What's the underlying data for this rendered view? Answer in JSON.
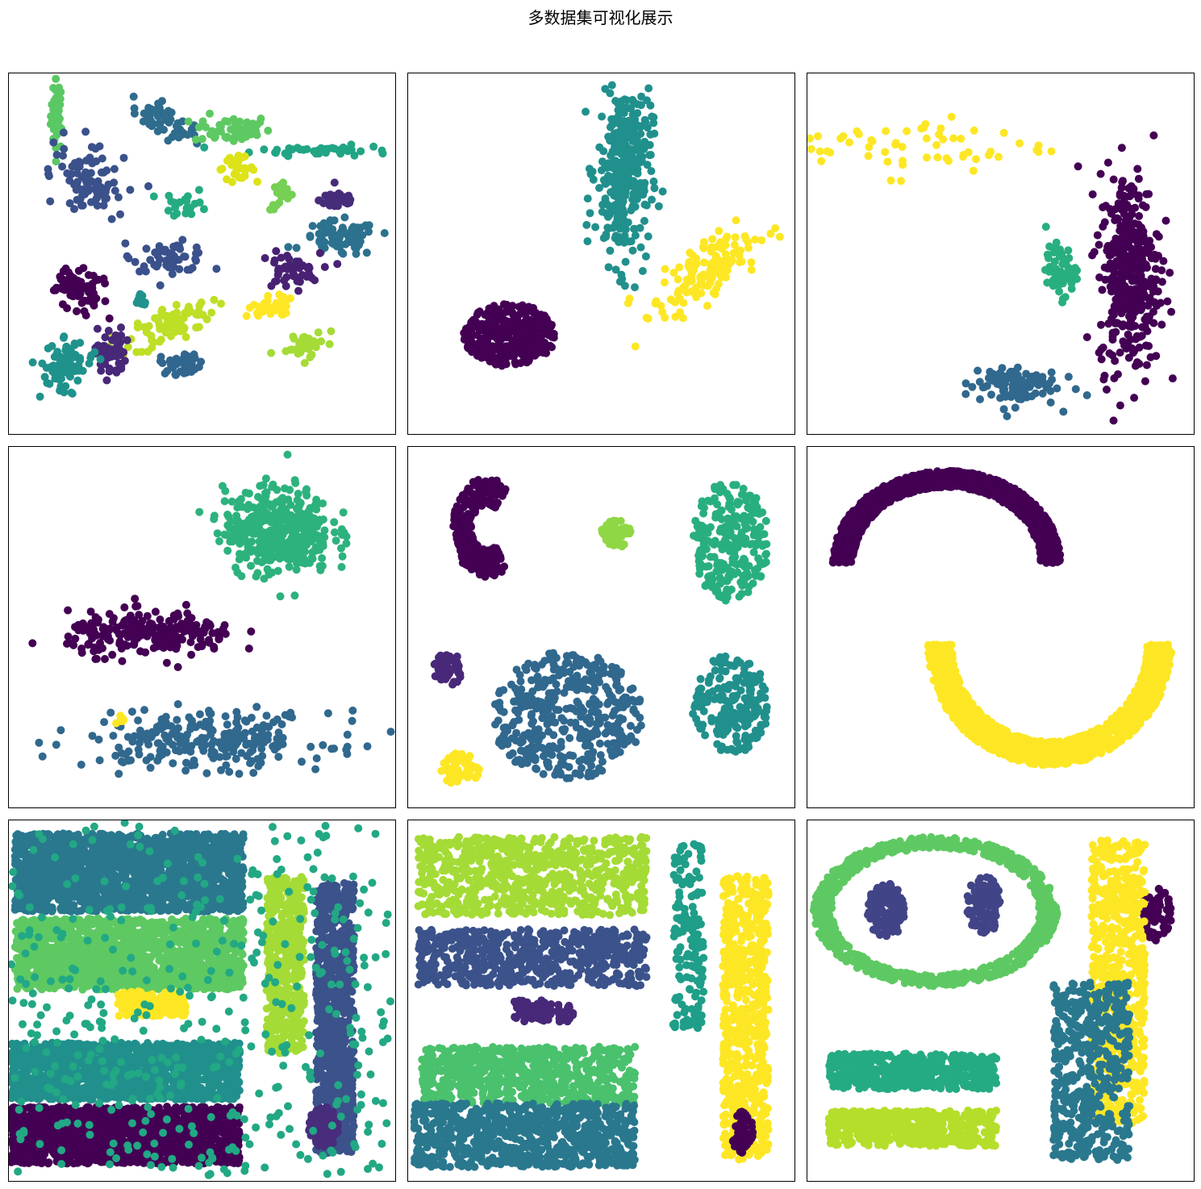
{
  "figure": {
    "title": "多数据集可视化展示"
  },
  "chart_data": [
    {
      "type": "scatter",
      "grid": false,
      "legend": null,
      "axes_visible": false,
      "xlim": [
        0,
        100
      ],
      "ylim": [
        0,
        100
      ],
      "clusters": [
        {
          "color": "#5ac864",
          "cx": 12,
          "cy": 89,
          "sx": 0.8,
          "sy": 5,
          "n": 40
        },
        {
          "color": "#2f6c8e",
          "cx": 40,
          "cy": 87,
          "sx": 5,
          "sy": 2,
          "n": 55,
          "rot": -0.5
        },
        {
          "color": "#5ec962",
          "cx": 58,
          "cy": 85,
          "sx": 5,
          "sy": 2,
          "n": 55
        },
        {
          "color": "#21a585",
          "cx": 82,
          "cy": 79,
          "sx": 9,
          "sy": 0.7,
          "n": 45
        },
        {
          "color": "#3b518b",
          "cx": 20,
          "cy": 71,
          "sx": 4,
          "sy": 6,
          "n": 90,
          "rot": 0.7
        },
        {
          "color": "#dde318",
          "cx": 59,
          "cy": 74,
          "sx": 2.5,
          "sy": 1.5,
          "n": 30
        },
        {
          "color": "#75d054",
          "cx": 71,
          "cy": 66,
          "sx": 1.5,
          "sy": 2,
          "n": 20
        },
        {
          "color": "#472c7a",
          "cx": 86,
          "cy": 65,
          "sx": 2.5,
          "sy": 1.5,
          "n": 40
        },
        {
          "color": "#2c718e",
          "cx": 86,
          "cy": 54,
          "sx": 5,
          "sy": 2.5,
          "n": 80
        },
        {
          "color": "#25ab82",
          "cx": 46,
          "cy": 64,
          "sx": 3,
          "sy": 2,
          "n": 22
        },
        {
          "color": "#3b518b",
          "cx": 42,
          "cy": 49,
          "sx": 5,
          "sy": 2,
          "n": 55
        },
        {
          "color": "#482173",
          "cx": 73,
          "cy": 45,
          "sx": 4,
          "sy": 2.5,
          "n": 50
        },
        {
          "color": "#440154",
          "cx": 18,
          "cy": 40,
          "sx": 3,
          "sy": 4,
          "n": 80,
          "rot": 0.8
        },
        {
          "color": "#bddf26",
          "cx": 42,
          "cy": 30,
          "sx": 6,
          "sy": 2.5,
          "n": 80,
          "rot": 0.4
        },
        {
          "color": "#20928c",
          "cx": 34,
          "cy": 37,
          "sx": 1,
          "sy": 1.5,
          "n": 12
        },
        {
          "color": "#fde725",
          "cx": 67,
          "cy": 34,
          "sx": 3,
          "sy": 1.5,
          "n": 35,
          "rot": 0.4
        },
        {
          "color": "#482878",
          "cx": 26,
          "cy": 22,
          "sx": 2,
          "sy": 3.5,
          "n": 50
        },
        {
          "color": "#20928c",
          "cx": 14,
          "cy": 18,
          "sx": 3,
          "sy": 4,
          "n": 90,
          "rot": -0.8
        },
        {
          "color": "#31668e",
          "cx": 45,
          "cy": 19,
          "sx": 3,
          "sy": 1.5,
          "n": 40
        },
        {
          "color": "#a5db36",
          "cx": 77,
          "cy": 24,
          "sx": 3,
          "sy": 1.5,
          "n": 40,
          "rot": 0.3
        }
      ]
    },
    {
      "type": "scatter",
      "grid": false,
      "legend": null,
      "axes_visible": false,
      "xlim": [
        0,
        100
      ],
      "ylim": [
        0,
        100
      ],
      "clusters": [
        {
          "color": "#440154",
          "cx": 26,
          "cy": 27,
          "sx": 12,
          "sy": 9,
          "n": 320,
          "shape": "disc"
        },
        {
          "color": "#21908d",
          "cx": 56,
          "cy": 73,
          "sx": 3.5,
          "sy": 13,
          "n": 330,
          "rot": -0.03
        },
        {
          "color": "#fde725",
          "cx": 77,
          "cy": 44,
          "sx": 8,
          "sy": 3.5,
          "n": 140,
          "rot": 0.65
        }
      ]
    },
    {
      "type": "scatter",
      "grid": false,
      "legend": null,
      "axes_visible": false,
      "xlim": [
        0,
        100
      ],
      "ylim": [
        0,
        100
      ],
      "clusters": [
        {
          "color": "#fde725",
          "cx": 30,
          "cy": 80,
          "sx": 17,
          "sy": 4,
          "n": 60
        },
        {
          "color": "#440154",
          "cx": 84,
          "cy": 45,
          "sx": 4,
          "sy": 14,
          "n": 380
        },
        {
          "color": "#29af7f",
          "cx": 66,
          "cy": 45,
          "sx": 2,
          "sy": 3.5,
          "n": 60
        },
        {
          "color": "#31688e",
          "cx": 53,
          "cy": 13,
          "sx": 6,
          "sy": 3,
          "n": 100
        }
      ]
    },
    {
      "type": "scatter",
      "grid": false,
      "legend": null,
      "axes_visible": false,
      "xlim": [
        0,
        100
      ],
      "ylim": [
        0,
        100
      ],
      "clusters": [
        {
          "color": "#2db27d",
          "cx": 70,
          "cy": 77,
          "sx": 7,
          "sy": 6,
          "n": 420
        },
        {
          "color": "#440154",
          "cx": 37,
          "cy": 48,
          "sx": 11,
          "sy": 3,
          "n": 230
        },
        {
          "color": "#31688e",
          "cx": 52,
          "cy": 18,
          "sx": 16,
          "sy": 4,
          "n": 260
        },
        {
          "color": "#fde725",
          "cx": 29,
          "cy": 24,
          "sx": 0.6,
          "sy": 0.6,
          "n": 10
        }
      ]
    },
    {
      "type": "scatter",
      "grid": false,
      "legend": null,
      "axes_visible": false,
      "xlim": [
        0,
        100
      ],
      "ylim": [
        0,
        100
      ],
      "clusters": [
        {
          "color": "#440154",
          "cx": 20,
          "cy": 78,
          "sx": 9,
          "sy": 14,
          "n": 260,
          "shape": "crescent"
        },
        {
          "color": "#8fd744",
          "cx": 54,
          "cy": 76,
          "sx": 4,
          "sy": 4,
          "n": 60,
          "shape": "disc"
        },
        {
          "color": "#29af7f",
          "cx": 84,
          "cy": 74,
          "sx": 10,
          "sy": 17,
          "n": 240,
          "shape": "disc"
        },
        {
          "color": "#21908d",
          "cx": 84,
          "cy": 28,
          "sx": 10,
          "sy": 14,
          "n": 200,
          "shape": "disc"
        },
        {
          "color": "#482878",
          "cx": 10,
          "cy": 38,
          "sx": 4,
          "sy": 5,
          "n": 45,
          "shape": "disc"
        },
        {
          "color": "#31688e",
          "cx": 41,
          "cy": 25,
          "sx": 20,
          "sy": 18,
          "n": 420,
          "shape": "disc"
        },
        {
          "color": "#fde725",
          "cx": 13,
          "cy": 10,
          "sx": 5,
          "sy": 5,
          "n": 50,
          "shape": "disc"
        }
      ]
    },
    {
      "type": "scatter",
      "grid": false,
      "legend": null,
      "axes_visible": false,
      "xlim": [
        0,
        100
      ],
      "ylim": [
        0,
        100
      ],
      "clusters": [
        {
          "color": "#440154",
          "cx": 36,
          "cy": 68,
          "sx": 30,
          "sy": 26,
          "n": 1400,
          "shape": "arc_top"
        },
        {
          "color": "#fde725",
          "cx": 63,
          "cy": 45,
          "sx": 32,
          "sy": 34,
          "n": 1500,
          "shape": "arc_bottom"
        }
      ]
    },
    {
      "type": "scatter",
      "grid": false,
      "legend": null,
      "axes_visible": false,
      "xlim": [
        0,
        100
      ],
      "ylim": [
        0,
        100
      ],
      "clusters": [
        {
          "color": "#2a788e",
          "cx": 31,
          "cy": 86,
          "sx": 30,
          "sy": 11,
          "n": 1800,
          "shape": "rect"
        },
        {
          "color": "#5ec962",
          "cx": 31,
          "cy": 63,
          "sx": 30,
          "sy": 10,
          "n": 1600,
          "shape": "rect"
        },
        {
          "color": "#fde725",
          "cx": 37,
          "cy": 49,
          "sx": 9,
          "sy": 3.5,
          "n": 200,
          "shape": "rect"
        },
        {
          "color": "#21908d",
          "cx": 30,
          "cy": 30,
          "sx": 30,
          "sy": 8,
          "n": 1500,
          "shape": "rect"
        },
        {
          "color": "#440154",
          "cx": 30,
          "cy": 12,
          "sx": 30,
          "sy": 8,
          "n": 1800,
          "shape": "rect"
        },
        {
          "color": "#a5db36",
          "cx": 72,
          "cy": 60,
          "sx": 5,
          "sy": 25,
          "n": 500,
          "shape": "rect"
        },
        {
          "color": "#3b528b",
          "cx": 85,
          "cy": 45,
          "sx": 5,
          "sy": 38,
          "n": 900,
          "shape": "rect"
        },
        {
          "color": "#472d7b",
          "cx": 82,
          "cy": 14,
          "sx": 4,
          "sy": 6,
          "n": 120,
          "shape": "disc"
        },
        {
          "color": "#22a884",
          "cx": 50,
          "cy": 50,
          "sx": 50,
          "sy": 50,
          "n": 420,
          "shape": "uniform"
        }
      ]
    },
    {
      "type": "scatter",
      "grid": false,
      "legend": null,
      "axes_visible": false,
      "xlim": [
        0,
        100
      ],
      "ylim": [
        0,
        100
      ],
      "clusters": [
        {
          "color": "#a5db36",
          "cx": 32,
          "cy": 85,
          "sx": 30,
          "sy": 11,
          "n": 700,
          "shape": "rect"
        },
        {
          "color": "#3b528b",
          "cx": 32,
          "cy": 62,
          "sx": 30,
          "sy": 8,
          "n": 600,
          "shape": "rect"
        },
        {
          "color": "#482878",
          "cx": 35,
          "cy": 47,
          "sx": 8,
          "sy": 3,
          "n": 80,
          "shape": "rect"
        },
        {
          "color": "#4ac16d",
          "cx": 31,
          "cy": 29,
          "sx": 28,
          "sy": 8,
          "n": 700,
          "shape": "rect"
        },
        {
          "color": "#2a788e",
          "cx": 30,
          "cy": 12,
          "sx": 29,
          "sy": 9,
          "n": 800,
          "shape": "rect"
        },
        {
          "color": "#1f9e89",
          "cx": 73,
          "cy": 68,
          "sx": 4,
          "sy": 26,
          "n": 160,
          "shape": "rect"
        },
        {
          "color": "#fde725",
          "cx": 88,
          "cy": 45,
          "sx": 6,
          "sy": 40,
          "n": 700,
          "shape": "rect"
        },
        {
          "color": "#440154",
          "cx": 87,
          "cy": 13,
          "sx": 3,
          "sy": 6,
          "n": 50,
          "shape": "disc"
        }
      ]
    },
    {
      "type": "scatter",
      "grid": false,
      "legend": null,
      "axes_visible": false,
      "xlim": [
        0,
        100
      ],
      "ylim": [
        0,
        100
      ],
      "clusters": [
        {
          "color": "#5ec962",
          "cx": 33,
          "cy": 75,
          "sx": 32,
          "sy": 21,
          "n": 900,
          "shape": "ring"
        },
        {
          "color": "#414487",
          "cx": 20,
          "cy": 75,
          "sx": 5,
          "sy": 8,
          "n": 120,
          "shape": "disc"
        },
        {
          "color": "#414487",
          "cx": 46,
          "cy": 77,
          "sx": 5,
          "sy": 8,
          "n": 120,
          "shape": "disc"
        },
        {
          "color": "#440154",
          "cx": 91,
          "cy": 74,
          "sx": 4,
          "sy": 8,
          "n": 70,
          "shape": "disc"
        },
        {
          "color": "#fde725",
          "cx": 81,
          "cy": 55,
          "sx": 7,
          "sy": 40,
          "n": 700,
          "shape": "rect"
        },
        {
          "color": "#2a788e",
          "cx": 74,
          "cy": 30,
          "sx": 10,
          "sy": 25,
          "n": 500,
          "shape": "rect"
        },
        {
          "color": "#25ab82",
          "cx": 27,
          "cy": 30,
          "sx": 22,
          "sy": 5,
          "n": 500,
          "shape": "rect"
        },
        {
          "color": "#b5de2b",
          "cx": 27,
          "cy": 14,
          "sx": 22,
          "sy": 5,
          "n": 500,
          "shape": "rect"
        }
      ]
    }
  ]
}
